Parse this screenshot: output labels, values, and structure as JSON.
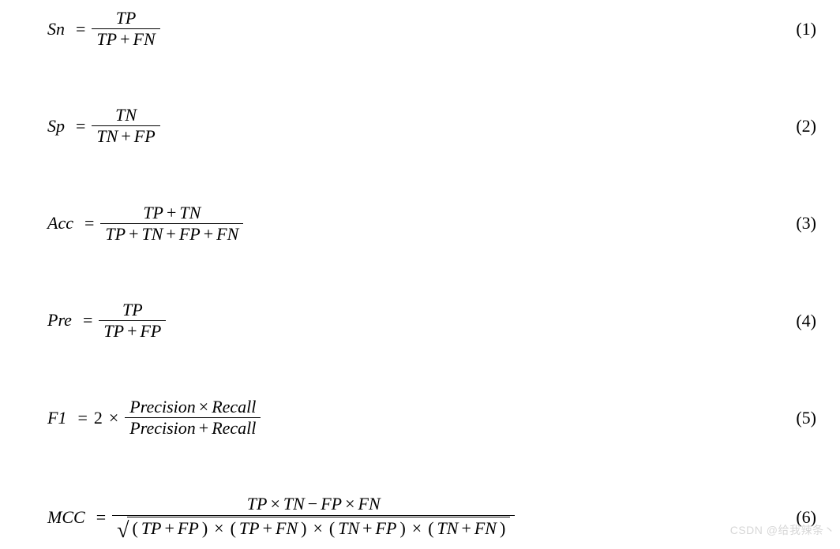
{
  "font": {
    "family": "Times New Roman",
    "size_pt": 22,
    "style": "italic",
    "color": "#000000"
  },
  "background_color": "#ffffff",
  "bar_color": "#000000",
  "equations": {
    "eq1": {
      "lhs": "Sn",
      "num": "TP",
      "den_parts": [
        "TP",
        "FN"
      ],
      "number": "(1)"
    },
    "eq2": {
      "lhs": "Sp",
      "num": "TN",
      "den_parts": [
        "TN",
        "FP"
      ],
      "number": "(2)"
    },
    "eq3": {
      "lhs": "Acc",
      "num_parts": [
        "TP",
        "TN"
      ],
      "den_parts": [
        "TP",
        "TN",
        "FP",
        "FN"
      ],
      "number": "(3)"
    },
    "eq4": {
      "lhs": "Pre",
      "num": "TP",
      "den_parts": [
        "TP",
        "FP"
      ],
      "number": "(4)"
    },
    "eq5": {
      "lhs": "F1",
      "coef": "2",
      "num_a": "Precision",
      "num_b": "Recall",
      "den_a": "Precision",
      "den_b": "Recall",
      "number": "(5)"
    },
    "eq6": {
      "lhs": "MCC",
      "num_a": "TP",
      "num_b": "TN",
      "num_c": "FP",
      "num_d": "FN",
      "den_f1a": "TP",
      "den_f1b": "FP",
      "den_f2a": "TP",
      "den_f2b": "FN",
      "den_f3a": "TN",
      "den_f3b": "FP",
      "den_f4a": "TN",
      "den_f4b": "FN",
      "number": "(6)"
    }
  },
  "symbols": {
    "plus": "+",
    "minus": "−",
    "times": "×",
    "equals": "=",
    "lp": "(",
    "rp": ")",
    "sqrt": "√"
  },
  "watermark": "CSDN @给我辣条丶"
}
